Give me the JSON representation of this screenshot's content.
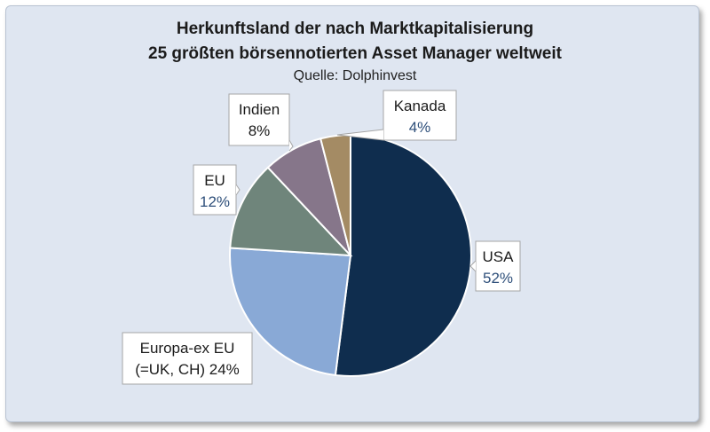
{
  "chart_data": {
    "type": "pie",
    "title_line1": "Herkunftsland der nach Marktkapitalisierung",
    "title_line2": "25 größten börsennotierten Asset Manager weltweit",
    "subtitle": "Quelle: Dolphinvest",
    "slices": [
      {
        "label": "USA",
        "value": 52,
        "display": "52%",
        "color": "#0f2d4e",
        "value_color": "#2e4f7a"
      },
      {
        "label": "Europa-ex EU",
        "label2": "(=UK, CH) 24%",
        "value": 24,
        "display": "",
        "color": "#89a9d6",
        "value_color": "#1b1b1b"
      },
      {
        "label": "EU",
        "value": 12,
        "display": "12%",
        "color": "#6f857b",
        "value_color": "#2e4f7a"
      },
      {
        "label": "Indien",
        "value": 8,
        "display": "8%",
        "color": "#86768a",
        "value_color": "#1b1b1b"
      },
      {
        "label": "Kanada",
        "value": 4,
        "display": "4%",
        "color": "#a48b64",
        "value_color": "#2e4f7a"
      }
    ]
  }
}
